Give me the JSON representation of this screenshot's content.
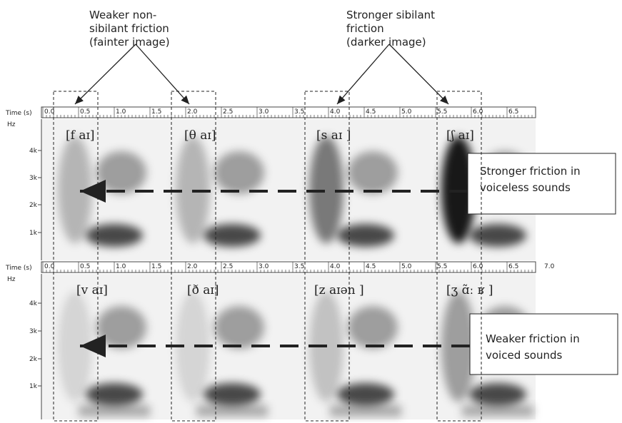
{
  "annotations": {
    "weak_nonsibilant": [
      "Weaker non-",
      "sibilant friction",
      "(fainter image)"
    ],
    "strong_sibilant": [
      "Stronger sibilant",
      "friction",
      "(darker image)"
    ]
  },
  "panels": [
    {
      "time_label": "Time (s)",
      "freq_label": "Hz",
      "time_ticks": [
        "0.0",
        "0.5",
        "1.0",
        "1.5",
        "2.0",
        "2.5",
        "3.0",
        "3.5",
        "4.0",
        "4.5",
        "5.0",
        "5.5",
        "6.0",
        "6.5"
      ],
      "freq_ticks": [
        "4k",
        "3k",
        "2k",
        "1k"
      ],
      "transcriptions": [
        "[f  aɪ]",
        "[θ  aɪ]",
        "[s  aɪ ]",
        "[ʃ   aɪ]"
      ],
      "callout": [
        "Stronger friction in",
        "voiceless sounds"
      ]
    },
    {
      "time_label": "Time (s)",
      "freq_label": "Hz",
      "time_ticks": [
        "0.0",
        "0.5",
        "1.0",
        "1.5",
        "2.0",
        "2.5",
        "3.0",
        "3.5",
        "4.0",
        "4.5",
        "5.0",
        "5.5",
        "6.0",
        "6.5",
        "7.0"
      ],
      "freq_ticks": [
        "4k",
        "3k",
        "2k",
        "1k"
      ],
      "transcriptions": [
        "[v  aɪ]",
        "[ð  aɪ]",
        "[z  aɪən ]",
        "[ʒ  ɑ̃ː ʁ ]"
      ],
      "callout": [
        "Weaker friction in",
        "voiced sounds"
      ]
    }
  ]
}
